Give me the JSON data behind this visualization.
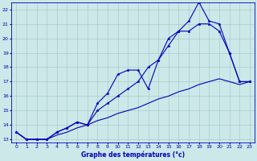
{
  "title": "Graphe des températures (°c)",
  "bg_color": "#cce8e8",
  "grid_color": "#aacccc",
  "line_color": "#0000bb",
  "x_min": 0,
  "x_max": 23,
  "y_min": 13,
  "y_max": 22,
  "hours": [
    0,
    1,
    2,
    3,
    4,
    5,
    6,
    7,
    8,
    9,
    10,
    11,
    12,
    13,
    14,
    15,
    16,
    17,
    18,
    19,
    20,
    21,
    22,
    23
  ],
  "line1": [
    13.5,
    13.0,
    13.0,
    13.0,
    13.5,
    13.8,
    14.2,
    14.0,
    15.5,
    16.2,
    17.5,
    17.8,
    17.8,
    16.5,
    18.5,
    20.0,
    20.5,
    21.2,
    22.5,
    21.2,
    21.0,
    19.0,
    17.0,
    17.0
  ],
  "line2": [
    13.5,
    13.0,
    13.0,
    13.0,
    13.5,
    13.8,
    14.2,
    14.0,
    15.0,
    15.5,
    16.0,
    16.5,
    17.0,
    18.0,
    18.5,
    19.5,
    20.5,
    20.5,
    21.0,
    21.0,
    20.5,
    19.0,
    17.0,
    17.0
  ],
  "line3": [
    13.5,
    13.0,
    13.0,
    13.0,
    13.3,
    13.5,
    13.8,
    14.0,
    14.3,
    14.5,
    14.8,
    15.0,
    15.2,
    15.5,
    15.8,
    16.0,
    16.3,
    16.5,
    16.8,
    17.0,
    17.2,
    17.0,
    16.8,
    17.0
  ]
}
